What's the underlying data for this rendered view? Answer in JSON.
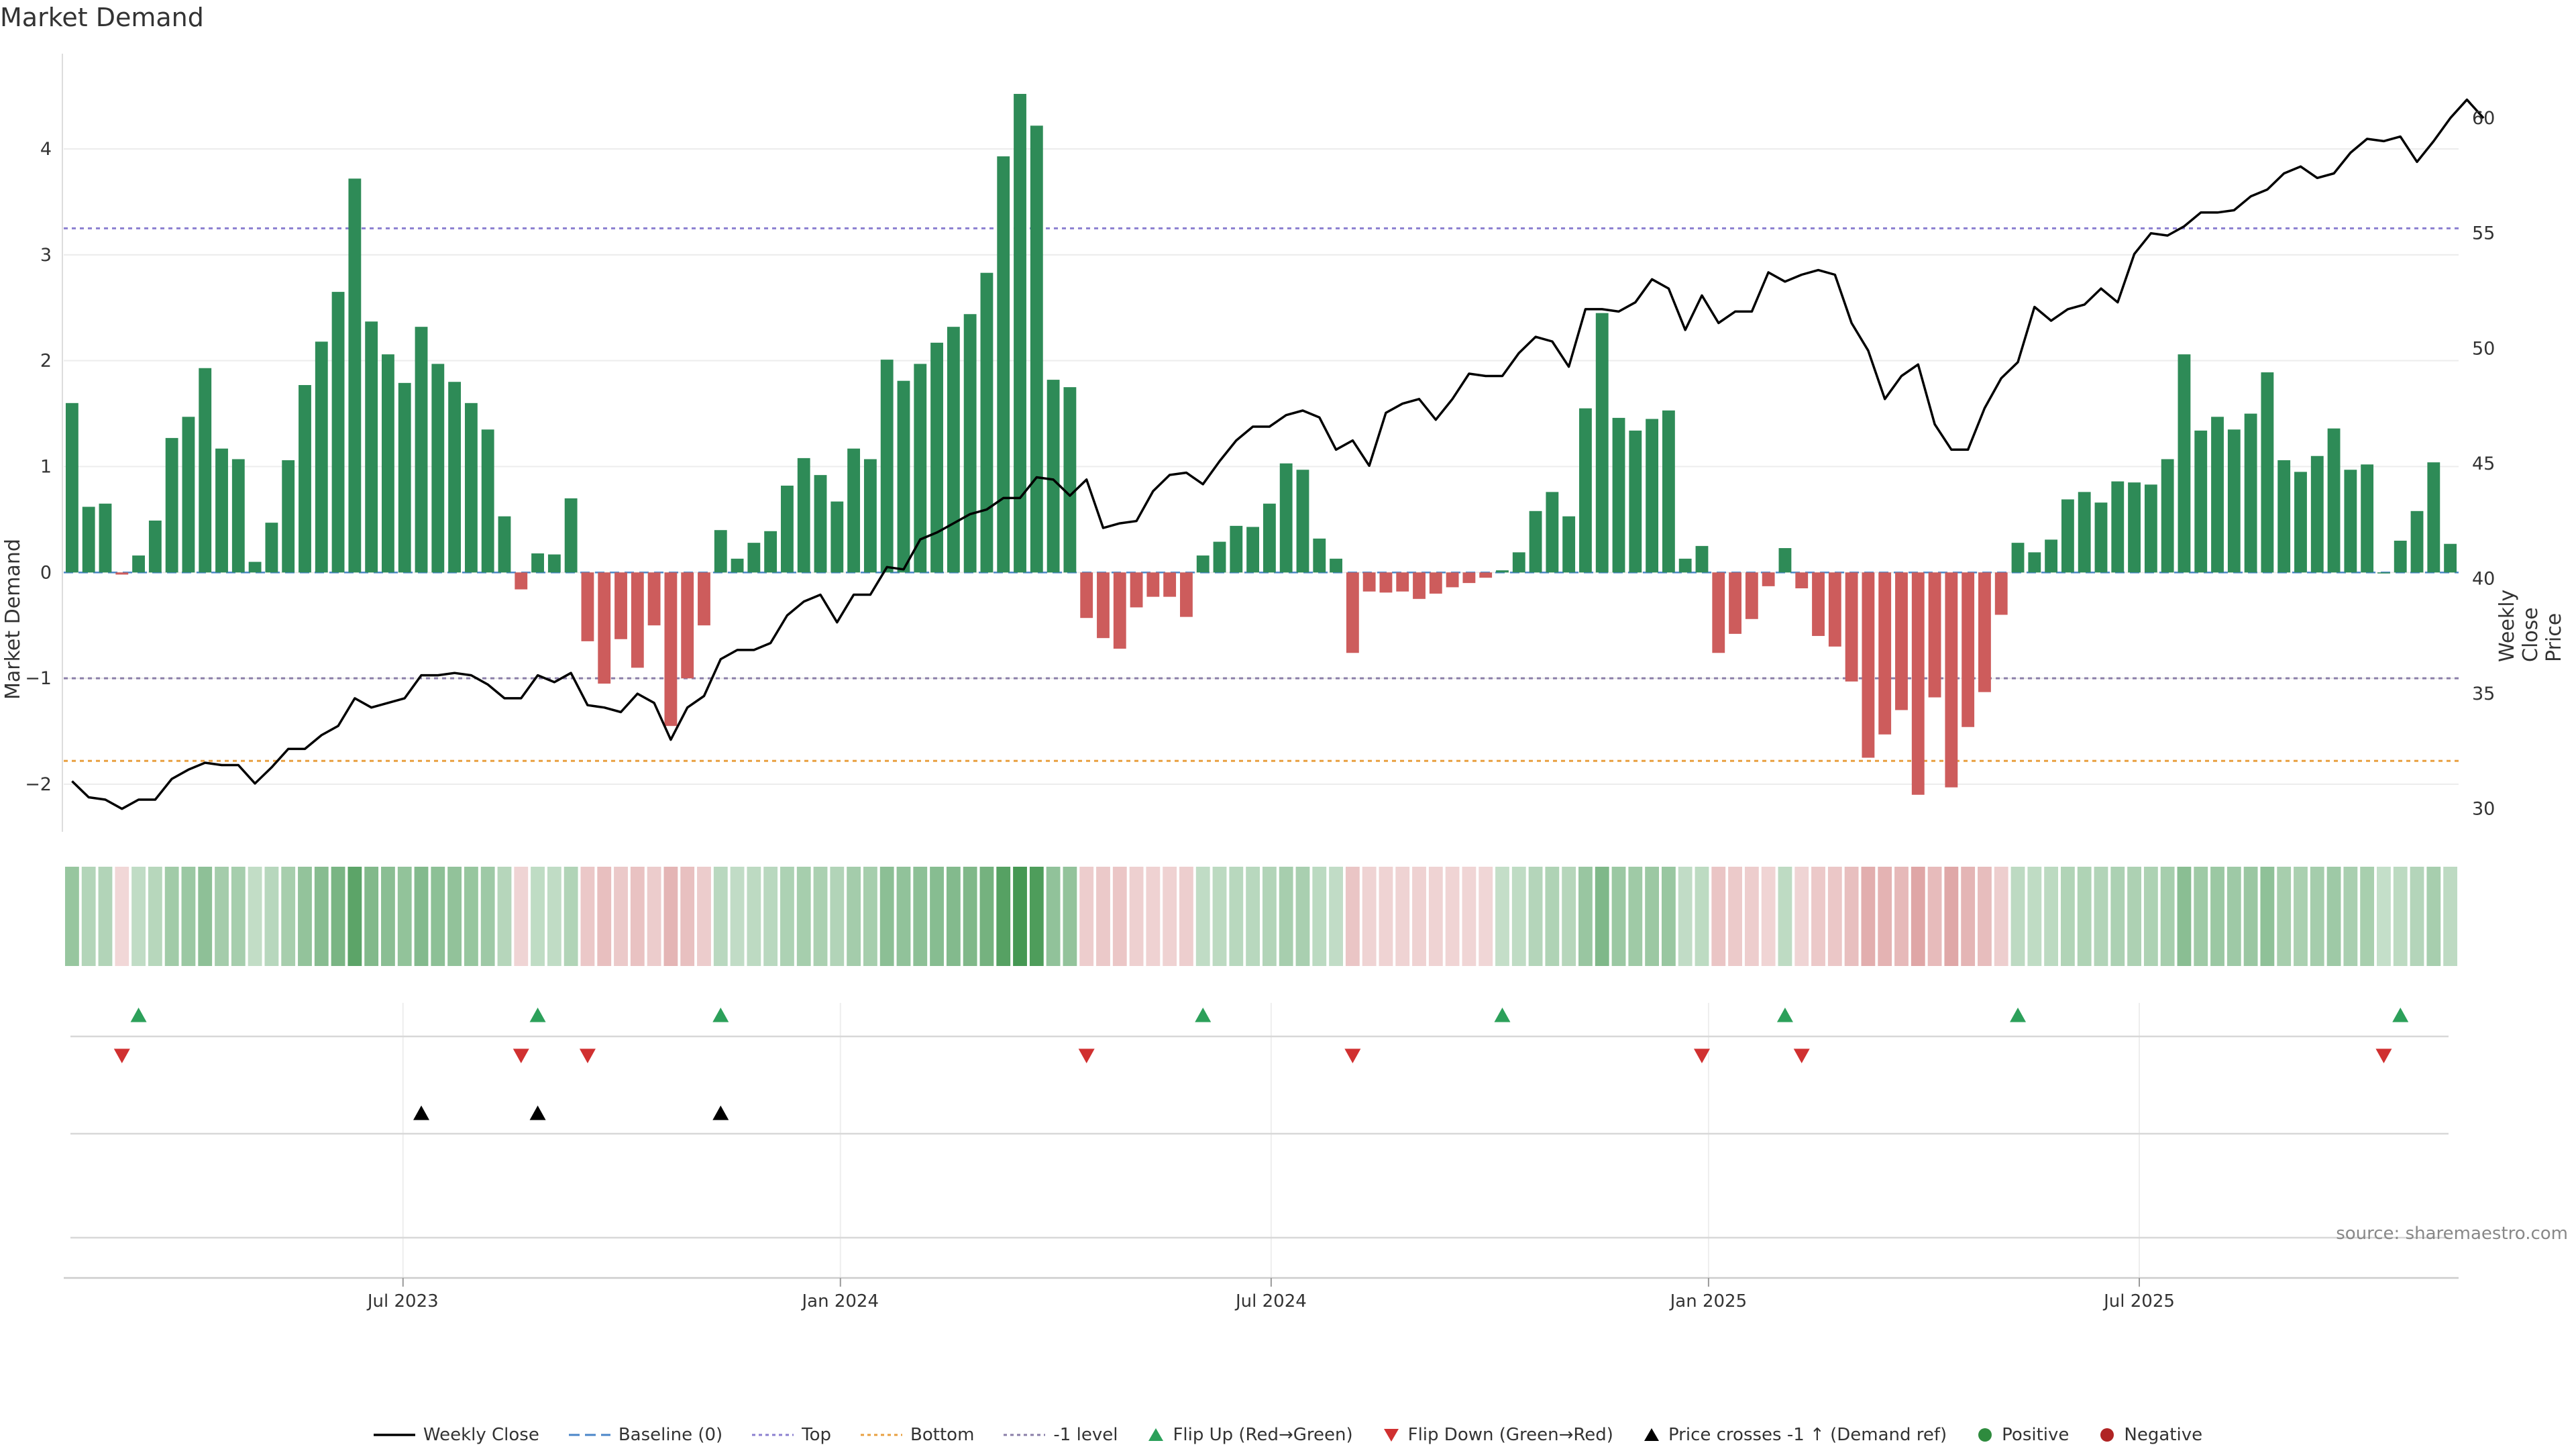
{
  "title": "Market Demand",
  "source": "source: sharemaestro.com",
  "chart_data": {
    "type": "bar",
    "ylabel": "Market Demand",
    "y2label": "Weekly Close Price",
    "ylim": [
      -2.45,
      4.9
    ],
    "y2lim": [
      29.0,
      62.8
    ],
    "yticks": [
      -2,
      -1,
      0,
      1,
      2,
      3,
      4
    ],
    "y2ticks": [
      30,
      35,
      40,
      45,
      50,
      55,
      60
    ],
    "xticks": [
      "Jul 2023",
      "Jan 2024",
      "Jul 2024",
      "Jan 2025",
      "Jul 2025"
    ],
    "xtick_positions": [
      20.4,
      46.7,
      72.6,
      98.9,
      124.8
    ],
    "reference_lines": [
      {
        "name": "Baseline (0)",
        "value": 0,
        "color": "#4a86c8"
      },
      {
        "name": "Top",
        "value": 3.25,
        "color": "#8b7fd0"
      },
      {
        "name": "Bottom",
        "value": -1.78,
        "color": "#e8a040"
      },
      {
        "name": "-1 level",
        "value": -1.0,
        "color": "#8a7ea8"
      }
    ],
    "demand": [
      1.6,
      0.62,
      0.65,
      -0.02,
      0.16,
      0.49,
      1.27,
      1.47,
      1.93,
      1.17,
      1.07,
      0.1,
      0.47,
      1.06,
      1.77,
      2.18,
      2.65,
      3.72,
      2.37,
      2.06,
      1.79,
      2.32,
      1.97,
      1.8,
      1.6,
      1.35,
      0.53,
      -0.16,
      0.18,
      0.17,
      0.7,
      -0.65,
      -1.05,
      -0.63,
      -0.9,
      -0.5,
      -1.45,
      -1.0,
      -0.5,
      0.4,
      0.13,
      0.28,
      0.39,
      0.82,
      1.08,
      0.92,
      0.67,
      1.17,
      1.07,
      2.01,
      1.81,
      1.97,
      2.17,
      2.32,
      2.44,
      2.83,
      3.93,
      4.52,
      4.22,
      1.82,
      1.75,
      -0.43,
      -0.62,
      -0.72,
      -0.33,
      -0.23,
      -0.23,
      -0.42,
      0.16,
      0.29,
      0.44,
      0.43,
      0.65,
      1.03,
      0.97,
      0.32,
      0.13,
      -0.76,
      -0.18,
      -0.19,
      -0.18,
      -0.25,
      -0.2,
      -0.14,
      -0.1,
      -0.05,
      0.02,
      0.19,
      0.58,
      0.76,
      0.53,
      1.55,
      2.45,
      1.46,
      1.34,
      1.45,
      1.53,
      0.13,
      0.25,
      -0.76,
      -0.58,
      -0.44,
      -0.13,
      0.23,
      -0.15,
      -0.6,
      -0.7,
      -1.03,
      -1.75,
      -1.53,
      -1.3,
      -2.1,
      -1.18,
      -2.03,
      -1.46,
      -1.13,
      -0.4,
      0.28,
      0.19,
      0.31,
      0.69,
      0.76,
      0.66,
      0.86,
      0.85,
      0.83,
      1.07,
      2.06,
      1.34,
      1.47,
      1.35,
      1.5,
      1.89,
      1.06,
      0.95,
      1.1,
      1.36,
      0.97,
      1.02,
      0.0,
      0.3,
      0.58,
      1.04,
      0.27
    ],
    "weekly_close": [
      31.2,
      30.5,
      30.4,
      30.0,
      30.4,
      30.4,
      31.3,
      31.7,
      32.0,
      31.9,
      31.9,
      31.1,
      31.8,
      32.6,
      32.6,
      33.2,
      33.6,
      34.8,
      34.4,
      34.6,
      34.8,
      35.8,
      35.8,
      35.9,
      35.8,
      35.4,
      34.8,
      34.8,
      35.8,
      35.5,
      35.9,
      34.5,
      34.4,
      34.2,
      35.0,
      34.6,
      33.0,
      34.4,
      34.9,
      36.5,
      36.9,
      36.9,
      37.2,
      38.4,
      39.0,
      39.3,
      38.1,
      39.3,
      39.3,
      40.5,
      40.4,
      41.7,
      42.0,
      42.4,
      42.8,
      43.0,
      43.5,
      43.5,
      44.4,
      44.3,
      43.6,
      44.3,
      42.2,
      42.4,
      42.5,
      43.8,
      44.5,
      44.6,
      44.1,
      45.1,
      46.0,
      46.6,
      46.6,
      47.1,
      47.3,
      47.0,
      45.6,
      46.0,
      44.9,
      47.2,
      47.6,
      47.8,
      46.9,
      47.8,
      48.9,
      48.8,
      48.8,
      49.8,
      50.5,
      50.3,
      49.2,
      51.7,
      51.7,
      51.6,
      52.0,
      53.0,
      52.6,
      50.8,
      52.3,
      51.1,
      51.6,
      51.6,
      53.3,
      52.9,
      53.2,
      53.4,
      53.2,
      51.1,
      49.9,
      47.8,
      48.8,
      49.3,
      46.7,
      45.6,
      45.6,
      47.4,
      48.7,
      49.4,
      51.8,
      51.2,
      51.7,
      51.9,
      52.6,
      52.0,
      54.1,
      55.0,
      54.9,
      55.3,
      55.9,
      55.9,
      56.0,
      56.6,
      56.9,
      57.6,
      57.9,
      57.4,
      57.6,
      58.5,
      59.1,
      59.0,
      59.2,
      58.1,
      59.0,
      60.0,
      60.8,
      60.0
    ],
    "flip_up": [
      4,
      28,
      39,
      68,
      86,
      103,
      117,
      140
    ],
    "flip_down": [
      3,
      27,
      31,
      61,
      77,
      98,
      104,
      139
    ],
    "price_crosses": [
      21,
      28,
      39
    ]
  },
  "legend": [
    {
      "label": "Weekly Close",
      "kind": "line",
      "color": "#000000"
    },
    {
      "label": "Baseline (0)",
      "kind": "dash",
      "color": "#4a86c8"
    },
    {
      "label": "Top",
      "kind": "dot",
      "color": "#8b7fd0"
    },
    {
      "label": "Bottom",
      "kind": "dot",
      "color": "#e8a040"
    },
    {
      "label": "-1 level",
      "kind": "dot",
      "color": "#8a7ea8"
    },
    {
      "label": "Flip Up (Red→Green)",
      "kind": "tri-up",
      "color": "#2ca05a"
    },
    {
      "label": "Flip Down (Green→Red)",
      "kind": "tri-down",
      "color": "#d03030"
    },
    {
      "label": "Price crosses -1 ↑ (Demand ref)",
      "kind": "tri-up",
      "color": "#000000"
    },
    {
      "label": "Positive",
      "kind": "circle",
      "color": "#2e8b3e"
    },
    {
      "label": "Negative",
      "kind": "circle",
      "color": "#b02424"
    }
  ],
  "colors": {
    "positive_bar": "#2e8b57",
    "negative_bar": "#cd5c5c",
    "price_line": "#000000",
    "heat_positive": "#2e8b3e",
    "heat_negative": "#b02424"
  }
}
